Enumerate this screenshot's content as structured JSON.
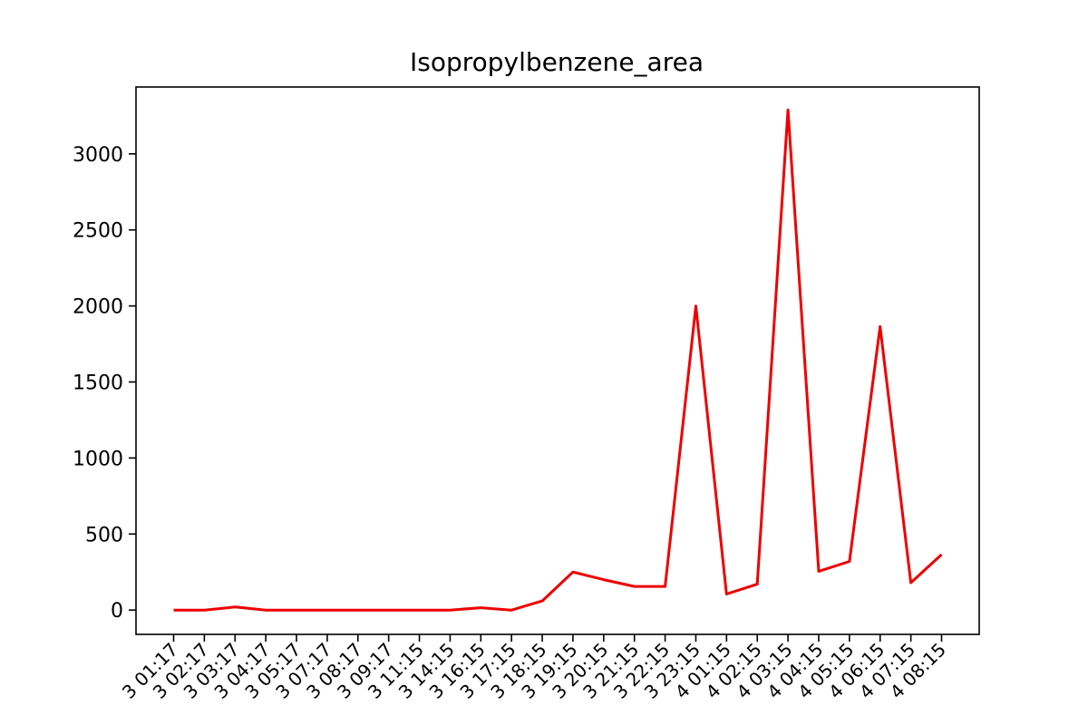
{
  "chart_data": {
    "type": "line",
    "title": "Isopropylbenzene_area",
    "xlabel": "",
    "ylabel": "",
    "categories": [
      "3 01:17",
      "3 02:17",
      "3 03:17",
      "3 04:17",
      "3 05:17",
      "3 07:17",
      "3 08:17",
      "3 09:17",
      "3 11:15",
      "3 14:15",
      "3 16:15",
      "3 17:15",
      "3 18:15",
      "3 19:15",
      "3 20:15",
      "3 21:15",
      "3 22:15",
      "3 23:15",
      "4 01:15",
      "4 02:15",
      "4 03:15",
      "4 04:15",
      "4 05:15",
      "4 06:15",
      "4 07:15",
      "4 08:15"
    ],
    "series": [
      {
        "values": [
          0,
          0,
          20,
          0,
          0,
          0,
          0,
          0,
          0,
          0,
          15,
          0,
          60,
          250,
          200,
          155,
          155,
          2000,
          105,
          170,
          3290,
          255,
          320,
          1865,
          180,
          365
        ],
        "color": "#ee0000"
      }
    ],
    "ylim": [
      -160,
      3440
    ],
    "yticks": [
      0,
      500,
      1000,
      1500,
      2000,
      2500,
      3000
    ],
    "grid": false,
    "legend": "none"
  }
}
